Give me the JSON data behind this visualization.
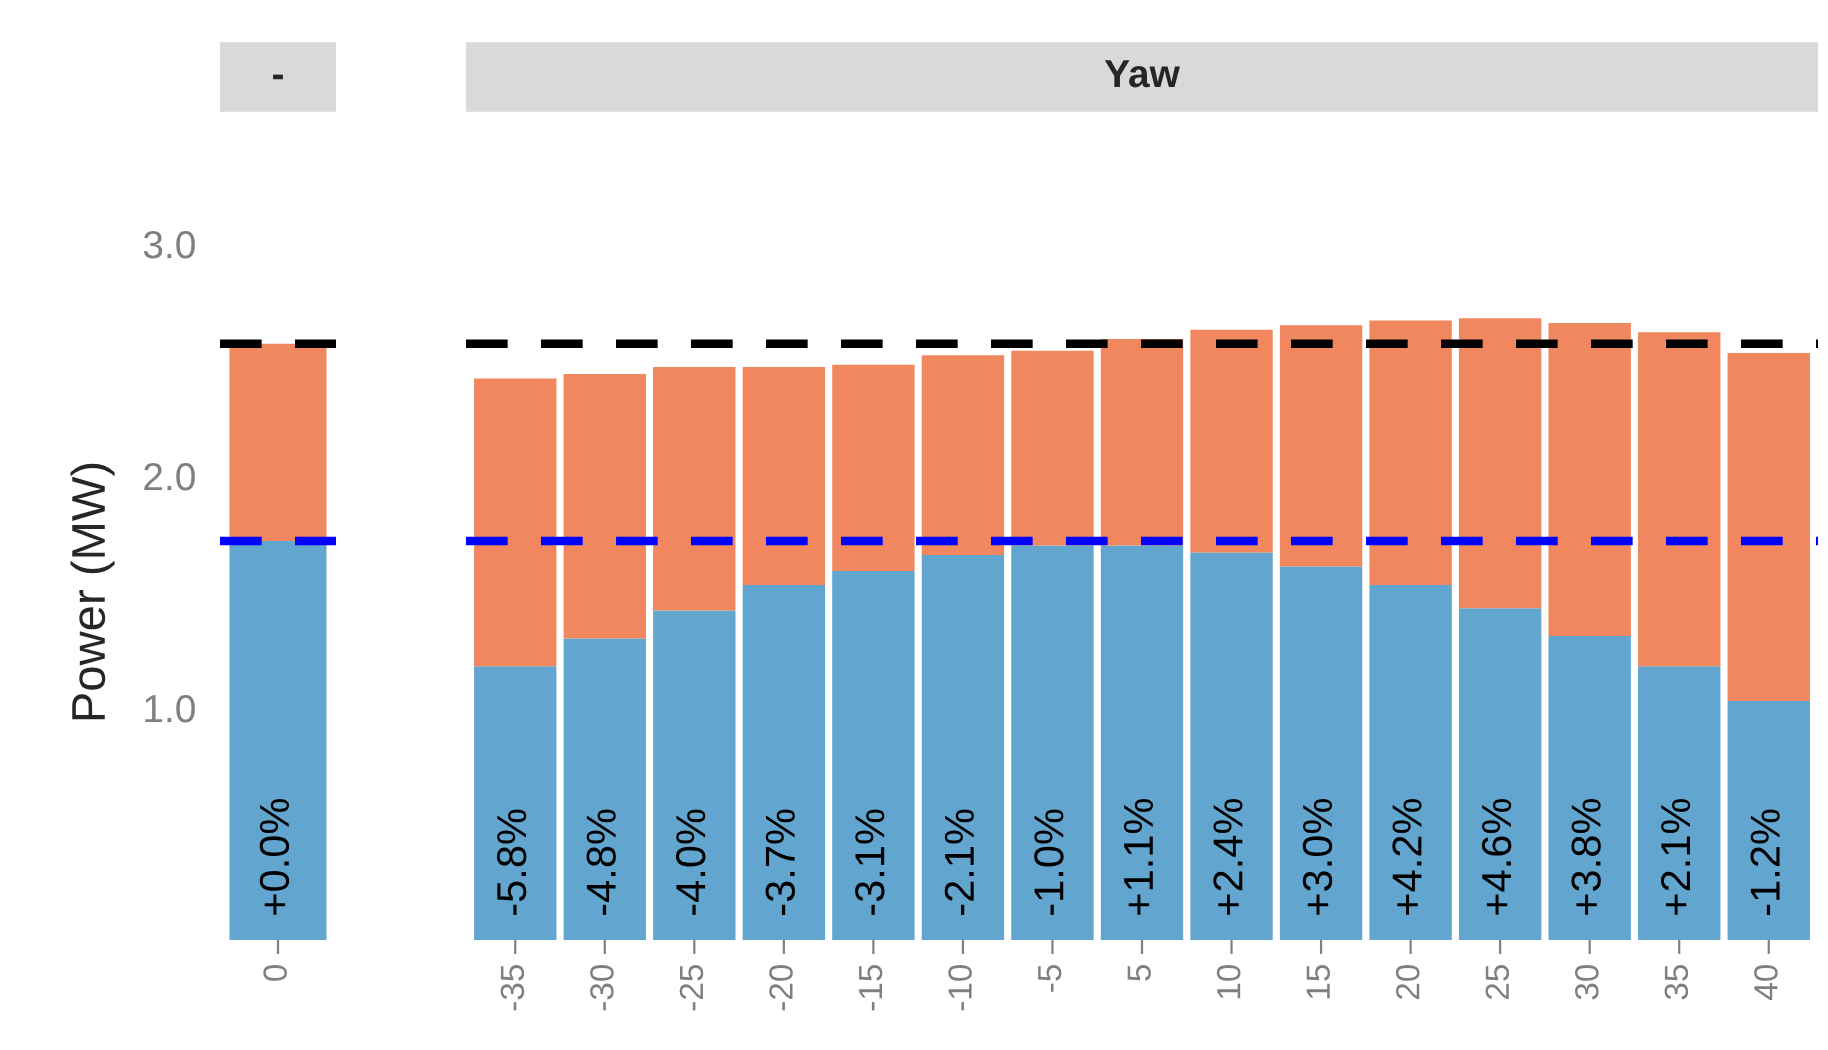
{
  "chart_data": [
    {
      "type": "bar",
      "stacked": true,
      "title": "-",
      "ylabel": "Power (MW)",
      "categories": [
        "0"
      ],
      "ylim": [
        0,
        3.0
      ],
      "annotations": [
        {
          "text": "+0.0%",
          "x": "0"
        }
      ],
      "yticks": [
        {
          "value": 1.0,
          "label": "1.0"
        },
        {
          "value": 2.0,
          "label": "2.0"
        },
        {
          "value": 3.0,
          "label": "3.0"
        }
      ],
      "grid": false,
      "legend": false,
      "series": [
        {
          "color": "#62a6d0",
          "values": [
            1.72
          ]
        },
        {
          "color": "#f0875e",
          "values": [
            0.85
          ]
        }
      ],
      "ref_lines": [
        {
          "axis": "y",
          "value": 2.57,
          "color": "#000000",
          "line_style": "dashed"
        },
        {
          "axis": "y",
          "value": 1.72,
          "color": "#0000ff",
          "line_style": "dashed"
        }
      ]
    },
    {
      "type": "bar",
      "stacked": true,
      "title": "Yaw",
      "categories": [
        "-35",
        "-30",
        "-25",
        "-20",
        "-15",
        "-10",
        "-5",
        "5",
        "10",
        "15",
        "20",
        "25",
        "30",
        "35",
        "40"
      ],
      "ylim": [
        0,
        3.0
      ],
      "tick_labels": "x",
      "annotations": [
        {
          "text": "-5.8%",
          "x": "-35"
        },
        {
          "text": "-4.8%",
          "x": "-30"
        },
        {
          "text": "-4.0%",
          "x": "-25"
        },
        {
          "text": "-3.7%",
          "x": "-20"
        },
        {
          "text": "-3.1%",
          "x": "-15"
        },
        {
          "text": "-2.1%",
          "x": "-10"
        },
        {
          "text": "-1.0%",
          "x": "-5"
        },
        {
          "text": "+1.1%",
          "x": "5"
        },
        {
          "text": "+2.4%",
          "x": "10"
        },
        {
          "text": "+3.0%",
          "x": "15"
        },
        {
          "text": "+4.2%",
          "x": "20"
        },
        {
          "text": "+4.6%",
          "x": "25"
        },
        {
          "text": "+3.8%",
          "x": "30"
        },
        {
          "text": "+2.1%",
          "x": "35"
        },
        {
          "text": "-1.2%",
          "x": "40"
        }
      ],
      "grid": false,
      "legend": false,
      "series": [
        {
          "color": "#62a6d0",
          "values": [
            1.18,
            1.3,
            1.42,
            1.53,
            1.59,
            1.66,
            1.7,
            1.7,
            1.67,
            1.61,
            1.53,
            1.43,
            1.31,
            1.18,
            1.03
          ]
        },
        {
          "color": "#f0875e",
          "values": [
            1.24,
            1.14,
            1.05,
            0.94,
            0.89,
            0.86,
            0.84,
            0.89,
            0.96,
            1.04,
            1.14,
            1.25,
            1.35,
            1.44,
            1.5
          ]
        }
      ],
      "ref_lines": [
        {
          "axis": "y",
          "value": 2.57,
          "color": "#000000",
          "line_style": "dashed"
        },
        {
          "axis": "y",
          "value": 1.72,
          "color": "#0000ff",
          "line_style": "dashed"
        }
      ]
    }
  ]
}
